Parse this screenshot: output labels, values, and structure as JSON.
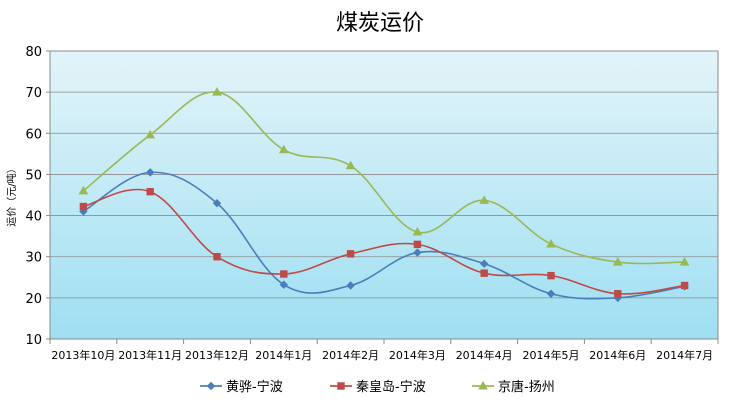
{
  "chart_data": {
    "type": "line",
    "title": "煤炭运价",
    "xlabel": "",
    "ylabel": "运价（元/吨）",
    "ylim": [
      10,
      80
    ],
    "yticks": [
      10,
      20,
      30,
      40,
      50,
      60,
      70,
      80
    ],
    "grid": true,
    "legend": "bottom",
    "smooth": true,
    "categories": [
      "2013年10月",
      "2013年11月",
      "2013年12月",
      "2014年1月",
      "2014年2月",
      "2014年3月",
      "2014年4月",
      "2014年5月",
      "2014年6月",
      "2014年7月"
    ],
    "series": [
      {
        "name": "黄骅-宁波",
        "color": "#4A7EBB",
        "marker": "diamond",
        "values": [
          41,
          50.5,
          43,
          23.2,
          23,
          31,
          28.3,
          21,
          20,
          22.8
        ]
      },
      {
        "name": "秦皇岛-宁波",
        "color": "#BE4B48",
        "marker": "square",
        "values": [
          42.2,
          45.8,
          30,
          25.8,
          30.7,
          33,
          26,
          25.4,
          21,
          23
        ]
      },
      {
        "name": "京唐-扬州",
        "color": "#98B954",
        "marker": "triangle",
        "values": [
          46,
          59.6,
          70,
          56,
          52.1,
          36,
          43.7,
          33.1,
          28.7,
          28.7
        ]
      }
    ]
  }
}
